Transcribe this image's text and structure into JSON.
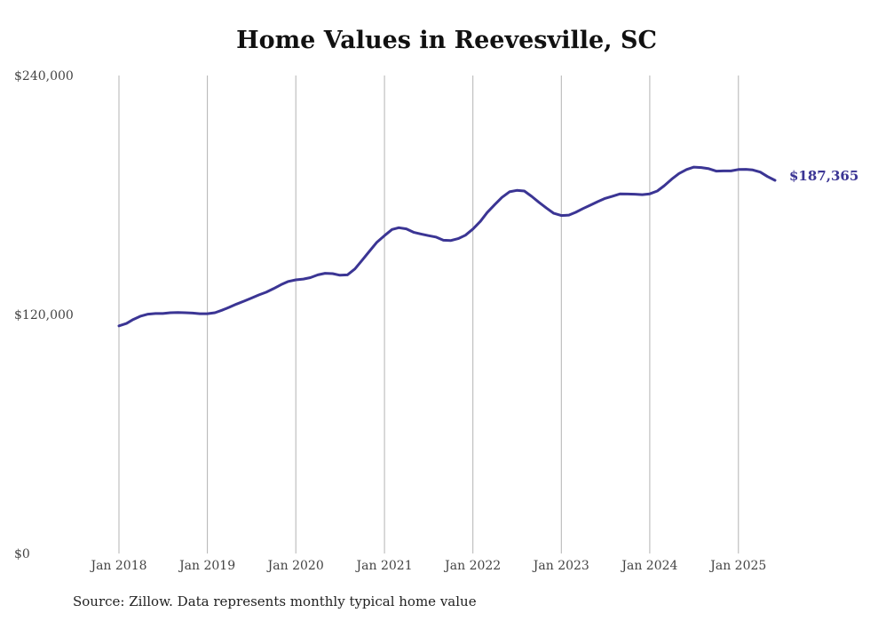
{
  "chart_data": {
    "type": "line",
    "title": "Home Values in Reevesville, SC",
    "source": "Source: Zillow. Data represents monthly typical home value",
    "xlabel": "",
    "ylabel": "",
    "ylim": [
      0,
      240000
    ],
    "y_ticks": [
      {
        "value": 0,
        "label": "$0"
      },
      {
        "value": 120000,
        "label": "$120,000"
      },
      {
        "value": 240000,
        "label": "$240,000"
      }
    ],
    "x_ticks": [
      {
        "date": "2018-01",
        "label": "Jan 2018"
      },
      {
        "date": "2019-01",
        "label": "Jan 2019"
      },
      {
        "date": "2020-01",
        "label": "Jan 2020"
      },
      {
        "date": "2021-01",
        "label": "Jan 2021"
      },
      {
        "date": "2022-01",
        "label": "Jan 2022"
      },
      {
        "date": "2023-01",
        "label": "Jan 2023"
      },
      {
        "date": "2024-01",
        "label": "Jan 2024"
      },
      {
        "date": "2025-01",
        "label": "Jan 2025"
      }
    ],
    "grid": "vertical",
    "line_color": "#3b3594",
    "end_label": "$187,365",
    "series": [
      {
        "x": [
          "2018-01",
          "2018-02",
          "2018-03",
          "2018-04",
          "2018-05",
          "2018-06",
          "2018-07",
          "2018-08",
          "2018-09",
          "2018-10",
          "2018-11",
          "2018-12",
          "2019-01",
          "2019-02",
          "2019-03",
          "2019-04",
          "2019-05",
          "2019-06",
          "2019-07",
          "2019-08",
          "2019-09",
          "2019-10",
          "2019-11",
          "2019-12",
          "2020-01",
          "2020-02",
          "2020-03",
          "2020-04",
          "2020-05",
          "2020-06",
          "2020-07",
          "2020-08",
          "2020-09",
          "2020-10",
          "2020-11",
          "2020-12",
          "2021-01",
          "2021-02",
          "2021-03",
          "2021-04",
          "2021-05",
          "2021-06",
          "2021-07",
          "2021-08",
          "2021-09",
          "2021-10",
          "2021-11",
          "2021-12",
          "2022-01",
          "2022-02",
          "2022-03",
          "2022-04",
          "2022-05",
          "2022-06",
          "2022-07",
          "2022-08",
          "2022-09",
          "2022-10",
          "2022-11",
          "2022-12",
          "2023-01",
          "2023-02",
          "2023-03",
          "2023-04",
          "2023-05",
          "2023-06",
          "2023-07",
          "2023-08",
          "2023-09",
          "2023-10",
          "2023-11",
          "2023-12",
          "2024-01",
          "2024-02",
          "2024-03",
          "2024-04",
          "2024-05",
          "2024-06",
          "2024-07",
          "2024-08",
          "2024-09",
          "2024-10",
          "2024-11",
          "2024-12",
          "2025-01",
          "2025-02",
          "2025-03",
          "2025-04",
          "2025-05",
          "2025-06"
        ],
        "values": [
          114300,
          115500,
          117500,
          119200,
          120200,
          120500,
          120500,
          120900,
          121000,
          120900,
          120700,
          120400,
          120400,
          120900,
          122100,
          123600,
          125200,
          126700,
          128200,
          129800,
          131200,
          133000,
          135000,
          136600,
          137400,
          137800,
          138500,
          139900,
          140700,
          140500,
          139700,
          139900,
          142900,
          147300,
          151900,
          156300,
          159600,
          162700,
          163600,
          163000,
          161300,
          160400,
          159600,
          158900,
          157300,
          157100,
          158100,
          159800,
          162900,
          166800,
          171200,
          175200,
          178800,
          181600,
          182300,
          182000,
          179300,
          176300,
          173400,
          170800,
          169700,
          169900,
          171300,
          173200,
          174900,
          176700,
          178300,
          179400,
          180600,
          180500,
          180400,
          180200,
          180600,
          182000,
          184700,
          188000,
          190800,
          192800,
          194000,
          193800,
          193200,
          192000,
          192100,
          192100,
          192800,
          192900,
          192600,
          191500,
          189300,
          187365
        ]
      }
    ]
  }
}
